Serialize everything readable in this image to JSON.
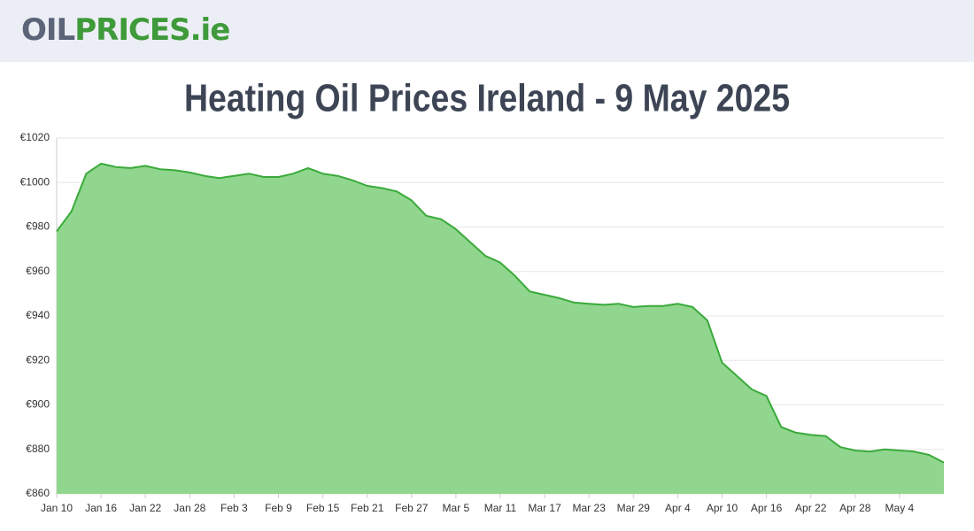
{
  "header": {
    "logo": [
      "OIL",
      "PRICES.ie"
    ]
  },
  "chart_data": {
    "type": "area",
    "title": "Heating Oil Prices Ireland - 9 May 2025",
    "color": "#3aaa3a",
    "fill": "#90d68f",
    "grid": true,
    "x": [
      0,
      2,
      4,
      6,
      8,
      10,
      12,
      14,
      16,
      18,
      20,
      22,
      24,
      26,
      28,
      30,
      32,
      34,
      36,
      38,
      40,
      42,
      44,
      46,
      48,
      50,
      52,
      54,
      56,
      58,
      60,
      62,
      64,
      66,
      68,
      70,
      72,
      74,
      76,
      78,
      80,
      82,
      84,
      86,
      88,
      90,
      92,
      94,
      96,
      98,
      100,
      102,
      104,
      106,
      108,
      110,
      112,
      114,
      116,
      118,
      120
    ],
    "values": [
      978,
      987,
      1004,
      1008.5,
      1007,
      1006.5,
      1007.5,
      1006,
      1005.5,
      1004.5,
      1003,
      1002,
      1003,
      1004,
      1002.5,
      1002.5,
      1004,
      1006.5,
      1004,
      1003,
      1001,
      998.5,
      997.5,
      996,
      992,
      985,
      983.5,
      979,
      973,
      967,
      964,
      958,
      951,
      949.5,
      948,
      946,
      945.5,
      945,
      945.5,
      944,
      944.5,
      944.5,
      945.5,
      944,
      938,
      919,
      913,
      907,
      904,
      890,
      887.5,
      886.5,
      886,
      881,
      879.5,
      879,
      880,
      879.5,
      879,
      877.5,
      874
    ],
    "xlim": [
      0,
      120
    ],
    "xticks": [
      {
        "value": 0,
        "label": "Jan 10"
      },
      {
        "value": 6,
        "label": "Jan 16"
      },
      {
        "value": 12,
        "label": "Jan 22"
      },
      {
        "value": 18,
        "label": "Jan 28"
      },
      {
        "value": 24,
        "label": "Feb 3"
      },
      {
        "value": 30,
        "label": "Feb 9"
      },
      {
        "value": 36,
        "label": "Feb 15"
      },
      {
        "value": 42,
        "label": "Feb 21"
      },
      {
        "value": 48,
        "label": "Feb 27"
      },
      {
        "value": 54,
        "label": "Mar 5"
      },
      {
        "value": 60,
        "label": "Mar 11"
      },
      {
        "value": 66,
        "label": "Mar 17"
      },
      {
        "value": 72,
        "label": "Mar 23"
      },
      {
        "value": 78,
        "label": "Mar 29"
      },
      {
        "value": 84,
        "label": "Apr 4"
      },
      {
        "value": 90,
        "label": "Apr 10"
      },
      {
        "value": 96,
        "label": "Apr 16"
      },
      {
        "value": 102,
        "label": "Apr 22"
      },
      {
        "value": 108,
        "label": "Apr 28"
      },
      {
        "value": 114,
        "label": "May 4"
      }
    ],
    "ylim": [
      860,
      1020
    ],
    "yticks": [
      {
        "value": 860,
        "label": "€860"
      },
      {
        "value": 880,
        "label": "€880"
      },
      {
        "value": 900,
        "label": "€900"
      },
      {
        "value": 920,
        "label": "€920"
      },
      {
        "value": 940,
        "label": "€940"
      },
      {
        "value": 960,
        "label": "€960"
      },
      {
        "value": 980,
        "label": "€980"
      },
      {
        "value": 1000,
        "label": "€1000"
      },
      {
        "value": 1020,
        "label": "€1020"
      }
    ]
  }
}
